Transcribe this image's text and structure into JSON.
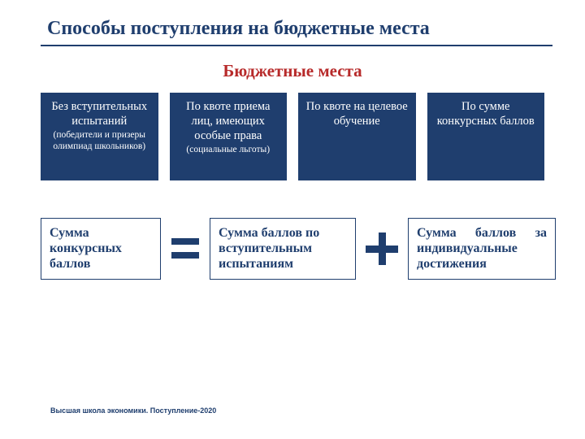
{
  "colors": {
    "title": "#1f3e6e",
    "underline": "#1f3e6e",
    "subtitle": "#b72a2a",
    "method_bg": "#1f3e6e",
    "method_text": "#ffffff",
    "formula_border": "#1f3e6e",
    "formula_text": "#1f3e6e",
    "symbol": "#1f3e6e",
    "footer": "#1f3e6e"
  },
  "title": "Способы поступления на бюджетные места",
  "subtitle": "Бюджетные места",
  "methods": [
    {
      "main": "Без вступительных испытаний",
      "note": "(победители и призеры олимпиад школьников)"
    },
    {
      "main": "По квоте приема лиц, имеющих особые права",
      "note": "(социальные льготы)"
    },
    {
      "main": "По квоте на целевое обучение",
      "note": ""
    },
    {
      "main": "По сумме конкурсных баллов",
      "note": ""
    }
  ],
  "formula": {
    "box1": "Сумма конкурсных баллов",
    "box2": "Сумма баллов по вступительным испытаниям",
    "box3": "Сумма баллов за индивидуальные достижения"
  },
  "footer": "Высшая школа экономики. Поступление-2020"
}
